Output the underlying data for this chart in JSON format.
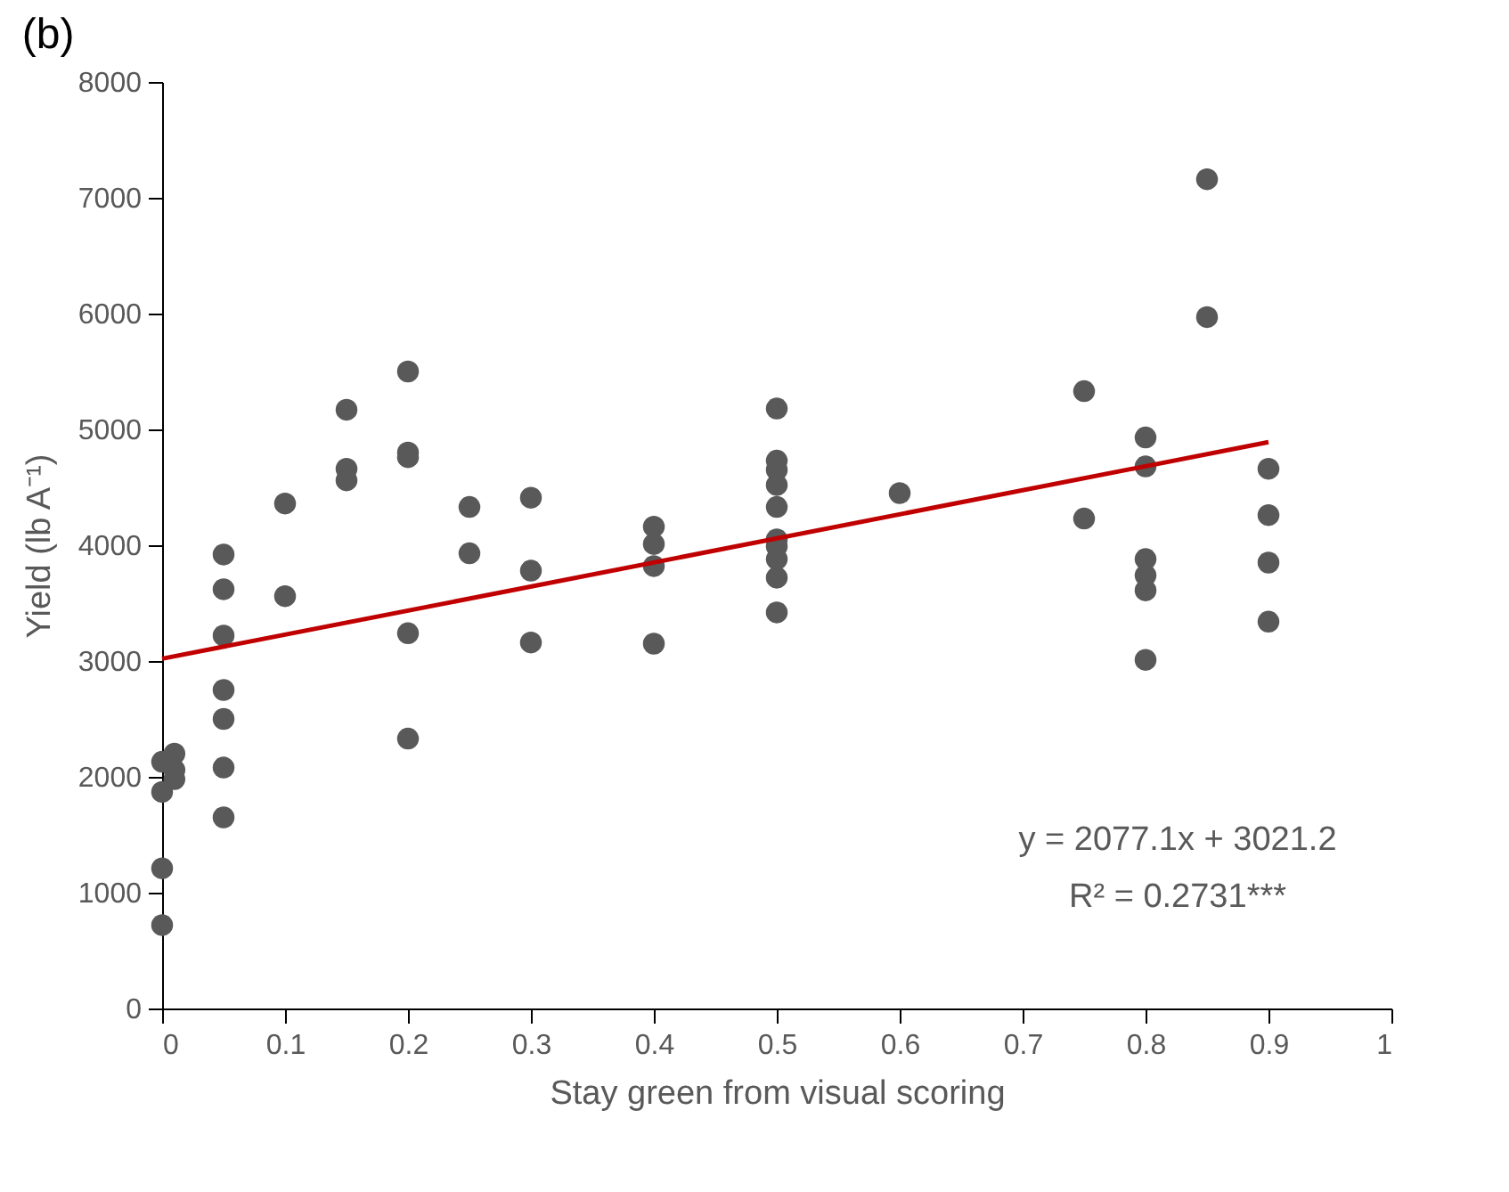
{
  "chart_data": {
    "type": "scatter",
    "title": "(b)",
    "xlabel": "Stay green from visual scoring",
    "ylabel": "Yield (lb A⁻¹)",
    "xlim": [
      0,
      1
    ],
    "xticks": [
      0,
      0.1,
      0.2,
      0.3,
      0.4,
      0.5,
      0.6,
      0.7,
      0.8,
      0.9,
      1
    ],
    "ylim": [
      0,
      8000
    ],
    "yticks": [
      0,
      1000,
      2000,
      3000,
      4000,
      5000,
      6000,
      7000,
      8000
    ],
    "grid": false,
    "marker": "circle",
    "series": [
      {
        "color": "#595959",
        "x": [
          0,
          0,
          0,
          0,
          0.01,
          0.01,
          0.01,
          0.05,
          0.05,
          0.05,
          0.05,
          0.05,
          0.05,
          0.05,
          0.1,
          0.1,
          0.15,
          0.15,
          0.15,
          0.2,
          0.2,
          0.2,
          0.2,
          0.2,
          0.25,
          0.25,
          0.3,
          0.3,
          0.3,
          0.4,
          0.4,
          0.4,
          0.4,
          0.5,
          0.5,
          0.5,
          0.5,
          0.5,
          0.5,
          0.5,
          0.5,
          0.5,
          0.5,
          0.6,
          0.75,
          0.75,
          0.8,
          0.8,
          0.8,
          0.8,
          0.8,
          0.8,
          0.85,
          0.85,
          0.9,
          0.9,
          0.9,
          0.9
        ],
        "values": [
          2130,
          1870,
          1210,
          720,
          2200,
          2060,
          1980,
          3920,
          3620,
          3220,
          2750,
          2500,
          2080,
          1650,
          4360,
          3560,
          5170,
          4660,
          4560,
          5500,
          4800,
          4760,
          3240,
          2330,
          4330,
          3930,
          4410,
          3780,
          3160,
          4160,
          4010,
          3820,
          3150,
          5180,
          4730,
          4650,
          4520,
          4330,
          4050,
          3990,
          3880,
          3720,
          3420,
          4450,
          5330,
          4230,
          4930,
          4680,
          3880,
          3740,
          3610,
          3010,
          7160,
          5970,
          4660,
          4260,
          3850,
          3340
        ]
      },
      {
        "type": "line",
        "color": "#c00000",
        "line_style": "solid",
        "marker": "none",
        "x": [
          0,
          0.9
        ],
        "values": [
          3020,
          4890
        ]
      }
    ],
    "annotations": [
      "y = 2077.1x + 3021.2",
      "R² = 0.2731***"
    ]
  }
}
